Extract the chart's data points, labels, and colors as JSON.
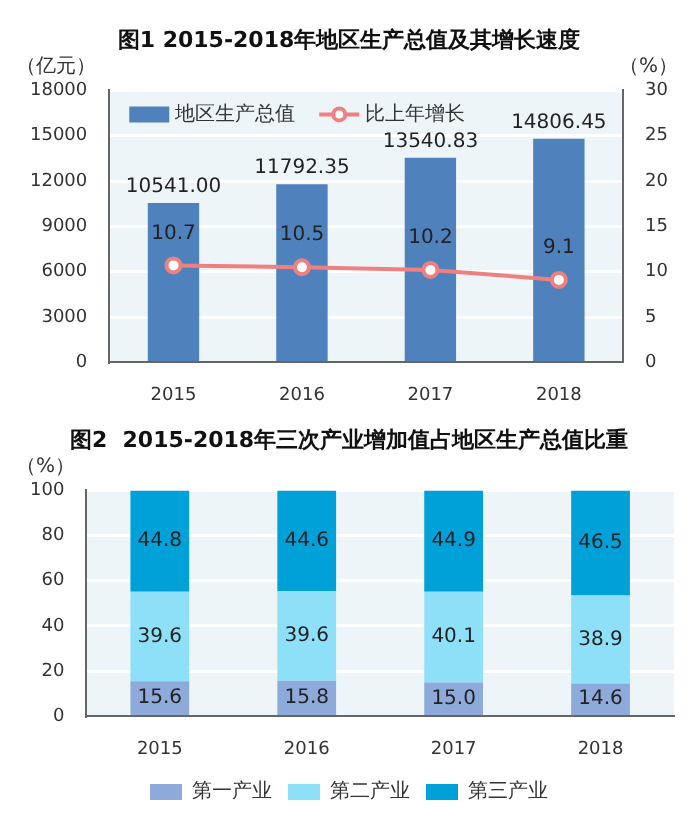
{
  "chart_data": [
    {
      "type": "bar",
      "title": "图1 2015-2018年地区生产总值及其增长速度",
      "ylabel": "（亿元）",
      "y2label": "（%）",
      "categories": [
        "2015",
        "2016",
        "2017",
        "2018"
      ],
      "series": [
        {
          "name": "地区生产总值",
          "type": "bar",
          "color": "#4f81bd",
          "values": [
            10541.0,
            11792.35,
            13540.83,
            14806.45
          ],
          "value_labels": [
            "10541.00",
            "11792.35",
            "13540.83",
            "14806.45"
          ]
        },
        {
          "name": "比上年增长",
          "type": "line",
          "axis": "y2",
          "color": "#f08080",
          "values": [
            10.7,
            10.5,
            10.2,
            9.1
          ],
          "value_labels": [
            "10.7",
            "10.5",
            "10.2",
            "9.1"
          ]
        }
      ],
      "ylim": [
        0,
        18000
      ],
      "yticks": [
        0,
        3000,
        6000,
        9000,
        12000,
        15000,
        18000
      ],
      "y2lim": [
        0,
        30
      ],
      "y2ticks": [
        0,
        5,
        10,
        15,
        20,
        25,
        30
      ],
      "grid": "y",
      "legend": "top left",
      "marker": "circle",
      "line_style": "solid"
    },
    {
      "type": "bar",
      "title": "图2  2015-2018年三次产业增加值占地区生产总值比重",
      "ylabel": "（%）",
      "categories": [
        "2015",
        "2016",
        "2017",
        "2018"
      ],
      "stacked": true,
      "series": [
        {
          "name": "第一产业",
          "color": "#8eaadb",
          "values": [
            15.6,
            15.8,
            15.0,
            14.6
          ],
          "value_labels": [
            "15.6",
            "15.8",
            "15.0",
            "14.6"
          ]
        },
        {
          "name": "第二产业",
          "color": "#8ee0f8",
          "values": [
            39.6,
            39.6,
            40.1,
            38.9
          ],
          "value_labels": [
            "39.6",
            "39.6",
            "40.1",
            "38.9"
          ]
        },
        {
          "name": "第三产业",
          "color": "#00a0d8",
          "values": [
            44.8,
            44.6,
            44.9,
            46.5
          ],
          "value_labels": [
            "44.8",
            "44.6",
            "44.9",
            "46.5"
          ]
        }
      ],
      "ylim": [
        0,
        100
      ],
      "yticks": [
        0,
        20,
        40,
        60,
        80,
        100
      ],
      "grid": "y",
      "legend": "bottom"
    }
  ]
}
